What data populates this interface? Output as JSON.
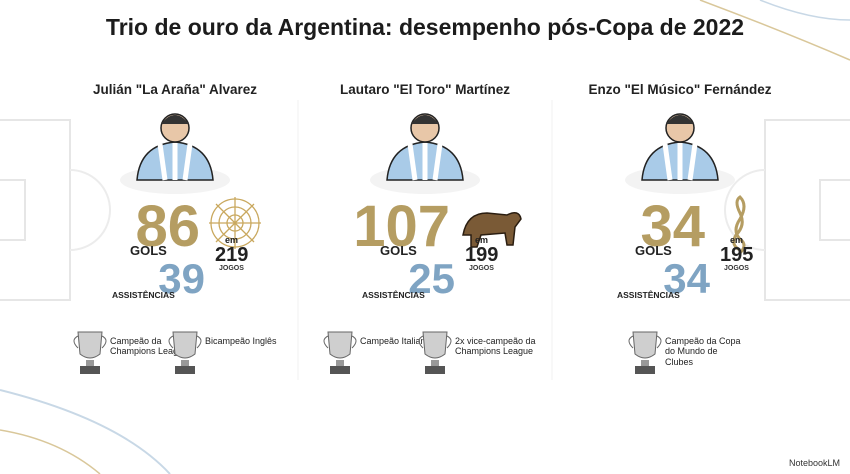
{
  "title": "Trio de ouro da Argentina: desempenho pós-Copa de 2022",
  "players": [
    {
      "name": "Julián \"La Araña\" Alvarez",
      "goals": 86,
      "goals_label": "GOLS",
      "assists": 39,
      "assists_label": "ASSISTÊNCIAS",
      "games_prefix": "em",
      "games": 219,
      "games_label": "JOGOS",
      "trophies": [
        {
          "label": "Campeão da Champions League"
        },
        {
          "label": "Bicampeão Inglês"
        }
      ]
    },
    {
      "name": "Lautaro \"El Toro\" Martínez",
      "goals": 107,
      "goals_label": "GOLS",
      "assists": 25,
      "assists_label": "ASSISTÊNCIAS",
      "games_prefix": "em",
      "games": 199,
      "games_label": "JOGOS",
      "trophies": [
        {
          "label": "Campeão Italiano"
        },
        {
          "label": "2x vice-campeão da Champions League"
        }
      ]
    },
    {
      "name": "Enzo \"El Músico\" Fernández",
      "goals": 34,
      "goals_label": "GOLS",
      "assists": 34,
      "assists_label": "ASSISTÊNCIAS",
      "games_prefix": "em",
      "games": 195,
      "games_label": "JOGOS",
      "trophies": [
        {
          "label": "Campeão da Copa do Mundo de Clubes"
        }
      ]
    }
  ],
  "footer": "NotebookLM"
}
